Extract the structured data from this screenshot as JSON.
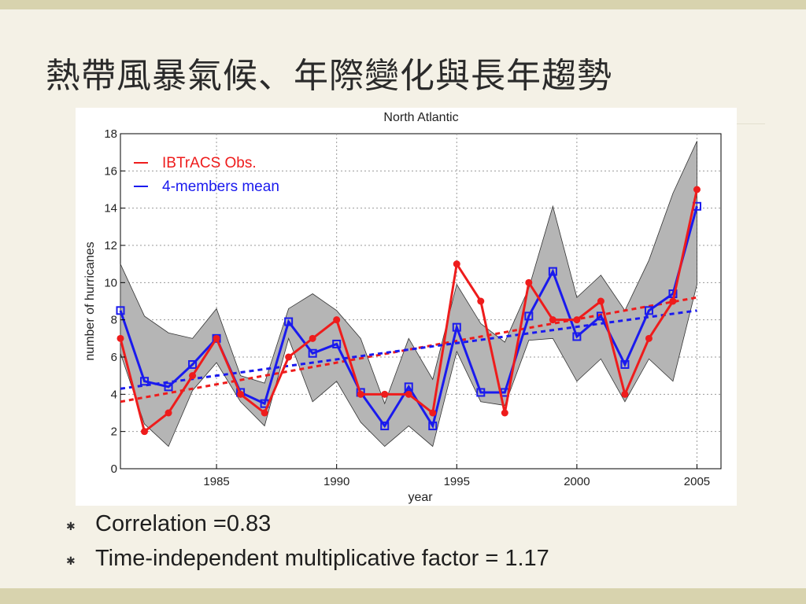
{
  "slide": {
    "title": "熱帶風暴氣候、年際變化與長年趨勢",
    "bullets": [
      {
        "text": "Correlation =0.83"
      },
      {
        "text": "Time-independent multiplicative factor = 1.17"
      }
    ],
    "colors": {
      "background": "#f4f1e6",
      "band": "#d8d3ae"
    }
  },
  "chart_data": {
    "type": "line",
    "title": "North Atlantic",
    "xlabel": "year",
    "ylabel": "number of hurricanes",
    "xlim": [
      1981,
      2006
    ],
    "ylim": [
      0,
      18
    ],
    "xticks": [
      1985,
      1990,
      1995,
      2000,
      2005
    ],
    "yticks": [
      0,
      2,
      4,
      6,
      8,
      10,
      12,
      14,
      16,
      18
    ],
    "grid": true,
    "legend_position": "top-left",
    "x": [
      1981,
      1982,
      1983,
      1984,
      1985,
      1986,
      1987,
      1988,
      1989,
      1990,
      1991,
      1992,
      1993,
      1994,
      1995,
      1996,
      1997,
      1998,
      1999,
      2000,
      2001,
      2002,
      2003,
      2004,
      2005
    ],
    "series": [
      {
        "name": "IBTrACS Obs.",
        "color": "#ee1c1c",
        "marker": "circle",
        "values": [
          7,
          2,
          3,
          5,
          7,
          4,
          3,
          6,
          7,
          8,
          4,
          4,
          4,
          3,
          11,
          9,
          3,
          10,
          8,
          8,
          9,
          4,
          7,
          9,
          15
        ]
      },
      {
        "name": "4-members mean",
        "color": "#1a1aee",
        "marker": "square",
        "values": [
          8.5,
          4.7,
          4.4,
          5.6,
          7.0,
          4.1,
          3.5,
          7.9,
          6.2,
          6.7,
          4.1,
          2.3,
          4.4,
          2.3,
          7.6,
          4.1,
          4.1,
          8.2,
          10.6,
          7.1,
          8.2,
          5.6,
          8.5,
          9.4,
          14.1
        ]
      }
    ],
    "spread_band": {
      "color": "#b5b5b5",
      "upper": [
        11.0,
        8.2,
        7.3,
        7.0,
        8.6,
        5.0,
        4.6,
        8.6,
        9.4,
        8.5,
        7.0,
        3.5,
        7.0,
        4.8,
        9.9,
        7.8,
        6.8,
        9.7,
        14.1,
        9.2,
        10.4,
        8.5,
        11.2,
        14.8,
        17.6
      ],
      "lower": [
        6.2,
        2.4,
        1.2,
        4.2,
        5.7,
        3.6,
        2.3,
        7.0,
        3.6,
        4.7,
        2.5,
        1.2,
        2.3,
        1.2,
        6.3,
        3.6,
        3.4,
        6.9,
        7.0,
        4.7,
        5.9,
        3.6,
        5.9,
        4.7,
        9.9
      ]
    },
    "trend_lines": [
      {
        "series": "IBTrACS Obs.",
        "color": "#ee1c1c",
        "dashed": true,
        "start": [
          1981,
          3.6
        ],
        "end": [
          2005,
          9.2
        ]
      },
      {
        "series": "4-members mean",
        "color": "#1a1aee",
        "dashed": true,
        "start": [
          1981,
          4.3
        ],
        "end": [
          2005,
          8.5
        ]
      }
    ]
  }
}
